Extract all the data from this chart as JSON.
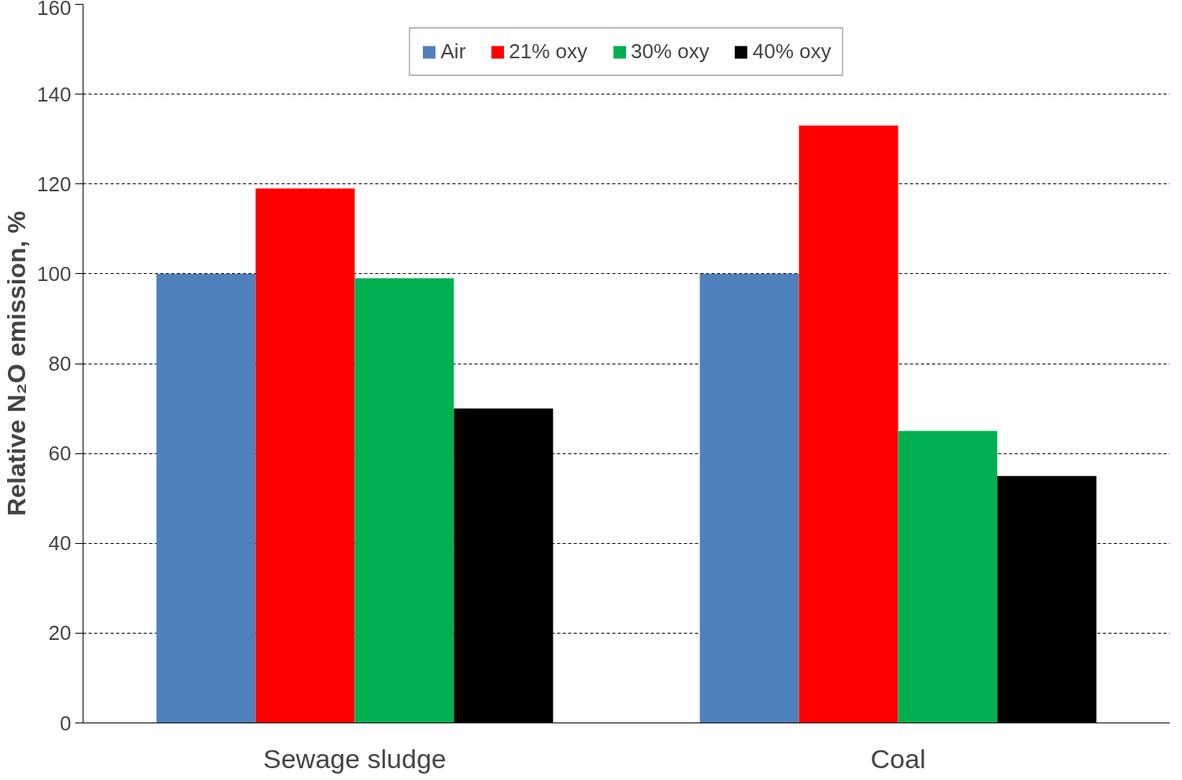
{
  "chart_data": {
    "type": "bar",
    "ylabel": "Relative N₂O emission, %",
    "categories": [
      "Sewage sludge",
      "Coal"
    ],
    "series": [
      {
        "name": "Air",
        "color": "#4f81bd",
        "values": [
          100,
          100
        ]
      },
      {
        "name": "21% oxy",
        "color": "#ff0000",
        "values": [
          119,
          133
        ]
      },
      {
        "name": "30% oxy",
        "color": "#00b050",
        "values": [
          99,
          65
        ]
      },
      {
        "name": "40% oxy",
        "color": "#000000",
        "values": [
          70,
          55
        ]
      }
    ],
    "ylim": [
      0,
      160
    ],
    "yticks": [
      0,
      20,
      40,
      60,
      80,
      100,
      120,
      140,
      160
    ],
    "grid": "y",
    "legend": "top"
  }
}
